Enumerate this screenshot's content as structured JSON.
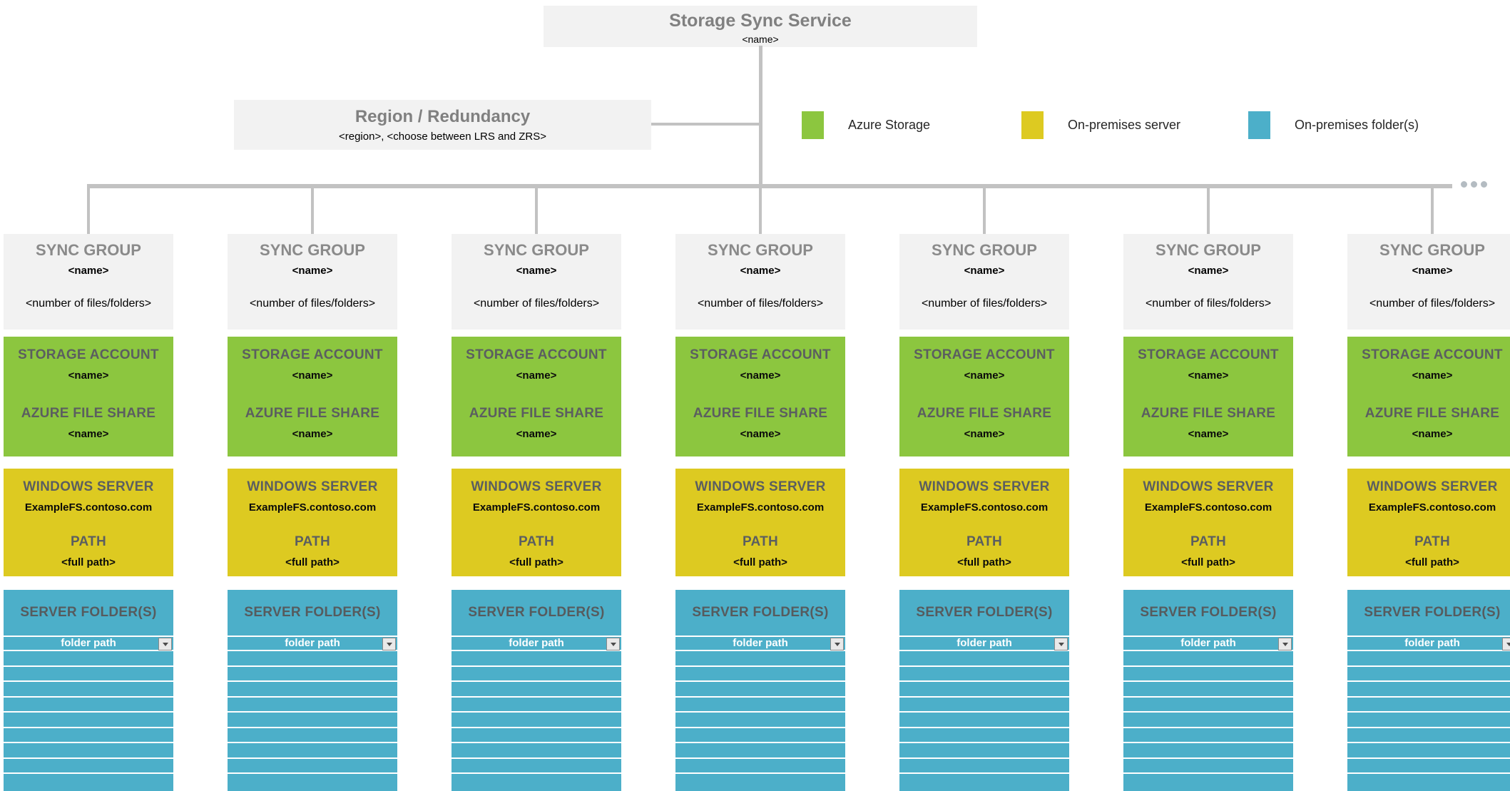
{
  "root": {
    "title": "Storage Sync Service",
    "name": "<name>"
  },
  "region": {
    "title": "Region / Redundancy",
    "subtitle": "<region>, <choose between LRS and ZRS>"
  },
  "legend": {
    "items": [
      {
        "label": "Azure Storage",
        "color": "#8CC63F"
      },
      {
        "label": "On-premises server",
        "color": "#DDCA21"
      },
      {
        "label": "On-premises folder(s)",
        "color": "#4CAFC9"
      }
    ]
  },
  "more_indicator": {
    "icon": "ellipsis-dots",
    "dot_count": 3
  },
  "colors": {
    "box_gray": "#F2F2F2",
    "azure_green": "#8CC63F",
    "server_yellow": "#DDCA21",
    "folder_teal": "#4CAFC9",
    "connector_gray": "#C2C2C2"
  },
  "sync_groups": [
    {
      "header": {
        "title": "SYNC GROUP",
        "name": "<name>",
        "count": "<number of files/folders>"
      },
      "azure": {
        "storage_account_label": "STORAGE ACCOUNT",
        "storage_account_name": "<name>",
        "file_share_label": "AZURE FILE SHARE",
        "file_share_name": "<name>"
      },
      "server": {
        "label": "WINDOWS SERVER",
        "server_name": "ExampleFS.contoso.com",
        "path_label": "PATH",
        "path_value": "<full path>"
      },
      "folders": {
        "label": "SERVER FOLDER(S)",
        "dropdown_value": "folder path",
        "empty_rows": 8
      }
    },
    {
      "header": {
        "title": "SYNC GROUP",
        "name": "<name>",
        "count": "<number of files/folders>"
      },
      "azure": {
        "storage_account_label": "STORAGE ACCOUNT",
        "storage_account_name": "<name>",
        "file_share_label": "AZURE FILE SHARE",
        "file_share_name": "<name>"
      },
      "server": {
        "label": "WINDOWS SERVER",
        "server_name": "ExampleFS.contoso.com",
        "path_label": "PATH",
        "path_value": "<full path>"
      },
      "folders": {
        "label": "SERVER FOLDER(S)",
        "dropdown_value": "folder path",
        "empty_rows": 8
      }
    },
    {
      "header": {
        "title": "SYNC GROUP",
        "name": "<name>",
        "count": "<number of files/folders>"
      },
      "azure": {
        "storage_account_label": "STORAGE ACCOUNT",
        "storage_account_name": "<name>",
        "file_share_label": "AZURE FILE SHARE",
        "file_share_name": "<name>"
      },
      "server": {
        "label": "WINDOWS SERVER",
        "server_name": "ExampleFS.contoso.com",
        "path_label": "PATH",
        "path_value": "<full path>"
      },
      "folders": {
        "label": "SERVER FOLDER(S)",
        "dropdown_value": "folder path",
        "empty_rows": 8
      }
    },
    {
      "header": {
        "title": "SYNC GROUP",
        "name": "<name>",
        "count": "<number of files/folders>"
      },
      "azure": {
        "storage_account_label": "STORAGE ACCOUNT",
        "storage_account_name": "<name>",
        "file_share_label": "AZURE FILE SHARE",
        "file_share_name": "<name>"
      },
      "server": {
        "label": "WINDOWS SERVER",
        "server_name": "ExampleFS.contoso.com",
        "path_label": "PATH",
        "path_value": "<full path>"
      },
      "folders": {
        "label": "SERVER FOLDER(S)",
        "dropdown_value": "folder path",
        "empty_rows": 8
      }
    },
    {
      "header": {
        "title": "SYNC GROUP",
        "name": "<name>",
        "count": "<number of files/folders>"
      },
      "azure": {
        "storage_account_label": "STORAGE ACCOUNT",
        "storage_account_name": "<name>",
        "file_share_label": "AZURE FILE SHARE",
        "file_share_name": "<name>"
      },
      "server": {
        "label": "WINDOWS SERVER",
        "server_name": "ExampleFS.contoso.com",
        "path_label": "PATH",
        "path_value": "<full path>"
      },
      "folders": {
        "label": "SERVER FOLDER(S)",
        "dropdown_value": "folder path",
        "empty_rows": 8
      }
    },
    {
      "header": {
        "title": "SYNC GROUP",
        "name": "<name>",
        "count": "<number of files/folders>"
      },
      "azure": {
        "storage_account_label": "STORAGE ACCOUNT",
        "storage_account_name": "<name>",
        "file_share_label": "AZURE FILE SHARE",
        "file_share_name": "<name>"
      },
      "server": {
        "label": "WINDOWS SERVER",
        "server_name": "ExampleFS.contoso.com",
        "path_label": "PATH",
        "path_value": "<full path>"
      },
      "folders": {
        "label": "SERVER FOLDER(S)",
        "dropdown_value": "folder path",
        "empty_rows": 8
      }
    },
    {
      "header": {
        "title": "SYNC GROUP",
        "name": "<name>",
        "count": "<number of files/folders>"
      },
      "azure": {
        "storage_account_label": "STORAGE ACCOUNT",
        "storage_account_name": "<name>",
        "file_share_label": "AZURE FILE SHARE",
        "file_share_name": "<name>"
      },
      "server": {
        "label": "WINDOWS SERVER",
        "server_name": "ExampleFS.contoso.com",
        "path_label": "PATH",
        "path_value": "<full path>"
      },
      "folders": {
        "label": "SERVER FOLDER(S)",
        "dropdown_value": "folder path",
        "empty_rows": 8
      }
    }
  ]
}
